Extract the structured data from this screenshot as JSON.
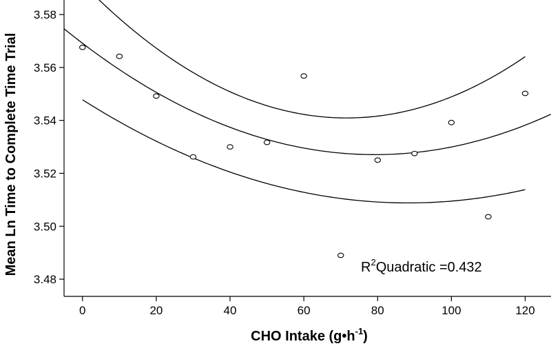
{
  "chart_data": {
    "type": "scatter",
    "title": "",
    "xlabel": "CHO Intake (g•h",
    "xlabel_sup": "-1",
    "xlabel_end": ")",
    "ylabel": "Mean Ln Time to Complete Time Trial",
    "xlim": [
      -5,
      127
    ],
    "ylim": [
      3.4735,
      3.5855
    ],
    "x_ticks": [
      0,
      20,
      40,
      60,
      80,
      100,
      120
    ],
    "y_ticks": [
      3.48,
      3.5,
      3.52,
      3.54,
      3.56,
      3.58
    ],
    "y_tick_labels": [
      "3.48",
      "3.50",
      "3.52",
      "3.54",
      "3.56",
      "3.58"
    ],
    "points": {
      "x": [
        0,
        10,
        20,
        30,
        40,
        50,
        60,
        70,
        80,
        90,
        100,
        110,
        120
      ],
      "y": [
        3.5676,
        3.5642,
        3.5492,
        3.5262,
        3.53,
        3.5317,
        3.5568,
        3.489,
        3.525,
        3.5275,
        3.5392,
        3.5036,
        3.5502
      ]
    },
    "series": [
      {
        "name": "quadratic fit",
        "x_range": [
          -5,
          127
        ],
        "coef": [
          3.56915,
          -0.001062,
          6.7e-06
        ]
      },
      {
        "name": "upper 95% band",
        "x_range": [
          -5,
          120
        ],
        "coef": [
          3.5917,
          -0.001418,
          9.9e-06
        ]
      },
      {
        "name": "lower 95% band",
        "x_range": [
          0,
          120
        ],
        "coef": [
          3.5478,
          -0.000883,
          5e-06
        ]
      }
    ],
    "annotation": {
      "prefix": "R",
      "sup": "2",
      "text": "Quadratic =0.432"
    }
  }
}
